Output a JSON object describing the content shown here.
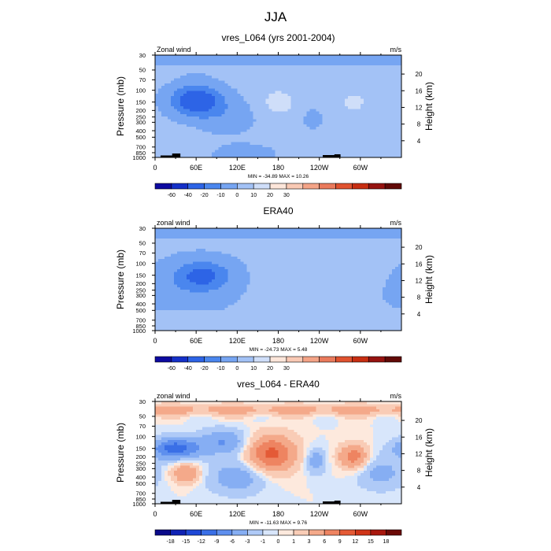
{
  "figure_title": "JJA",
  "chart_data": [
    {
      "type": "heatmap",
      "title": "vres_L064 (yrs 2001-2004)",
      "left_label": "Zonal wind",
      "right_label": "m/s",
      "ylabel": "Pressure (mb)",
      "ylabel_right": "Height (km)",
      "x_tick_labels": [
        "0",
        "60E",
        "120E",
        "180",
        "120W",
        "60W"
      ],
      "x_values": [
        0,
        60,
        120,
        180,
        240,
        300
      ],
      "xlim": [
        0,
        360
      ],
      "y_tick_labels": [
        "30",
        "50",
        "70",
        "100",
        "150",
        "200",
        "250",
        "300",
        "400",
        "500",
        "700",
        "850",
        "1000"
      ],
      "y_values": [
        30,
        50,
        70,
        100,
        150,
        200,
        250,
        300,
        400,
        500,
        700,
        850,
        1000
      ],
      "ylim": [
        1000,
        30
      ],
      "height_tick_labels": [
        "4",
        "8",
        "12",
        "16",
        "20"
      ],
      "height_values": [
        4,
        8,
        12,
        16,
        20
      ],
      "stats": "MIN = -34.89  MAX =  10.26",
      "min": -34.89,
      "max": 10.26,
      "colorbar_labels": [
        "-60",
        "-40",
        "-20",
        "-10",
        "0",
        "10",
        "20",
        "30"
      ],
      "colorbar_levels": [
        -60,
        -40,
        -20,
        -10,
        0,
        10,
        20,
        30
      ],
      "features": [
        {
          "lon": 60,
          "p": 140,
          "value": -34.89
        },
        {
          "lon": 35,
          "p": 600,
          "value": 8
        },
        {
          "lon": 180,
          "p": 150,
          "value": 10.26
        },
        {
          "lon": 290,
          "p": 150,
          "value": 8
        }
      ]
    },
    {
      "type": "heatmap",
      "title": "ERA40",
      "left_label": "zonal wind",
      "right_label": "m/s",
      "ylabel": "Pressure (mb)",
      "ylabel_right": "Height (km)",
      "x_tick_labels": [
        "0",
        "60E",
        "120E",
        "180",
        "120W",
        "60W"
      ],
      "x_values": [
        0,
        60,
        120,
        180,
        240,
        300
      ],
      "xlim": [
        0,
        360
      ],
      "y_tick_labels": [
        "30",
        "50",
        "70",
        "100",
        "150",
        "200",
        "250",
        "300",
        "400",
        "500",
        "700",
        "850",
        "1000"
      ],
      "y_values": [
        30,
        50,
        70,
        100,
        150,
        200,
        250,
        300,
        400,
        500,
        700,
        850,
        1000
      ],
      "ylim": [
        1000,
        30
      ],
      "height_tick_labels": [
        "4",
        "8",
        "12",
        "16",
        "20"
      ],
      "height_values": [
        4,
        8,
        12,
        16,
        20
      ],
      "stats": "MIN = -24.73  MAX =    5.48",
      "min": -24.73,
      "max": 5.48,
      "colorbar_labels": [
        "-60",
        "-40",
        "-20",
        "-10",
        "0",
        "10",
        "20",
        "30"
      ],
      "colorbar_levels": [
        -60,
        -40,
        -20,
        -10,
        0,
        10,
        20,
        30
      ],
      "features": [
        {
          "lon": 70,
          "p": 150,
          "value": -24.73
        },
        {
          "lon": 240,
          "p": 150,
          "value": 5.48
        }
      ]
    },
    {
      "type": "heatmap",
      "title": "vres_L064 - ERA40",
      "left_label": "zonal wind",
      "right_label": "m/s",
      "ylabel": "Pressure (mb)",
      "ylabel_right": "Height (km)",
      "x_tick_labels": [
        "0",
        "60E",
        "120E",
        "180",
        "120W",
        "60W"
      ],
      "x_values": [
        0,
        60,
        120,
        180,
        240,
        300
      ],
      "xlim": [
        0,
        360
      ],
      "y_tick_labels": [
        "30",
        "50",
        "70",
        "100",
        "150",
        "200",
        "250",
        "300",
        "400",
        "500",
        "700",
        "850",
        "1000"
      ],
      "y_values": [
        30,
        50,
        70,
        100,
        150,
        200,
        250,
        300,
        400,
        500,
        700,
        850,
        1000
      ],
      "ylim": [
        1000,
        30
      ],
      "height_tick_labels": [
        "4",
        "8",
        "12",
        "16",
        "20"
      ],
      "height_values": [
        4,
        8,
        12,
        16,
        20
      ],
      "stats": "MIN = -11.63  MAX =    9.76",
      "min": -11.63,
      "max": 9.76,
      "colorbar_labels": [
        "-18",
        "-15",
        "-12",
        "-9",
        "-6",
        "-3",
        "-1",
        "0",
        "1",
        "3",
        "6",
        "9",
        "12",
        "15",
        "18"
      ],
      "colorbar_levels": [
        -18,
        -15,
        -12,
        -9,
        -6,
        -3,
        -1,
        0,
        1,
        3,
        6,
        9,
        12,
        15,
        18
      ],
      "features": [
        {
          "lon": 30,
          "p": 150,
          "value": -11.63
        },
        {
          "lon": 170,
          "p": 180,
          "value": 9.76
        },
        {
          "lon": 290,
          "p": 200,
          "value": 8
        }
      ]
    }
  ]
}
